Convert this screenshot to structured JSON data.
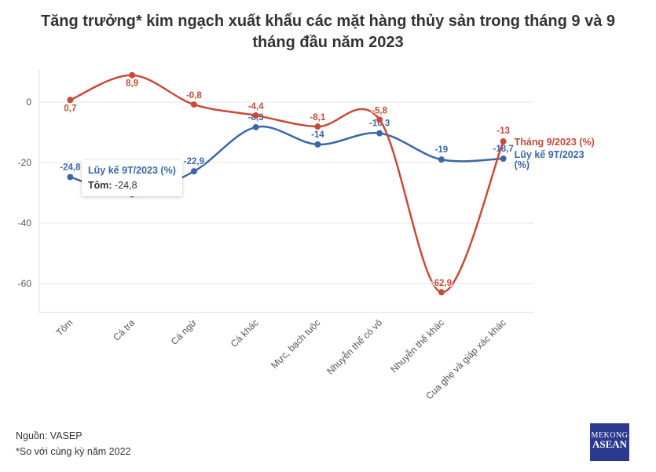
{
  "title_line1": "Tăng trưởng* kim ngạch xuất khẩu các mặt hàng thủy sản trong tháng 9 và 9",
  "title_line2": "tháng đầu năm 2023",
  "source": "Nguồn: VASEP",
  "note": "*So với cùng kỳ năm 2022",
  "logo": {
    "line1": "MEKONG",
    "line2": "ASEAN"
  },
  "tooltip": {
    "series": "Lũy kế 9T/2023 (%)",
    "category": "Tôm:",
    "value": "-24,8"
  },
  "chart_data": {
    "type": "line",
    "title": "Tăng trưởng* kim ngạch xuất khẩu các mặt hàng thủy sản trong tháng 9 và 9 tháng đầu năm 2023",
    "categories": [
      "Tôm",
      "Cá tra",
      "Cá ngừ",
      "Cá khác",
      "Mực, bạch tuộc",
      "Nhuyễn thể có vỏ",
      "Nhuyễn thể khác",
      "Cua ghẹ và giáp xác khác"
    ],
    "yticks": [
      0,
      -20,
      -40,
      -60
    ],
    "ylim": [
      -69.5,
      11
    ],
    "grid": true,
    "series": [
      {
        "name": "Tháng 9/2023 (%)",
        "color": "#c94a38",
        "values": [
          0.7,
          8.9,
          -0.8,
          -4.4,
          -8.1,
          -5.8,
          -62.9,
          -13
        ],
        "labels": [
          "0,7",
          "8,9",
          "-0,8",
          "-4,4",
          "-8,1",
          "-5,8",
          "-62,9",
          "-13"
        ]
      },
      {
        "name": "Lũy kế 9T/2023 (%)",
        "color": "#3a67a8",
        "values": [
          -24.8,
          -30.5,
          -22.9,
          -8.3,
          -14,
          -10.3,
          -19,
          -18.7
        ],
        "labels": [
          "-24,8",
          "",
          "-22,9",
          "-8,3",
          "-14",
          "-10,3",
          "-19",
          "-18,7"
        ]
      }
    ]
  }
}
